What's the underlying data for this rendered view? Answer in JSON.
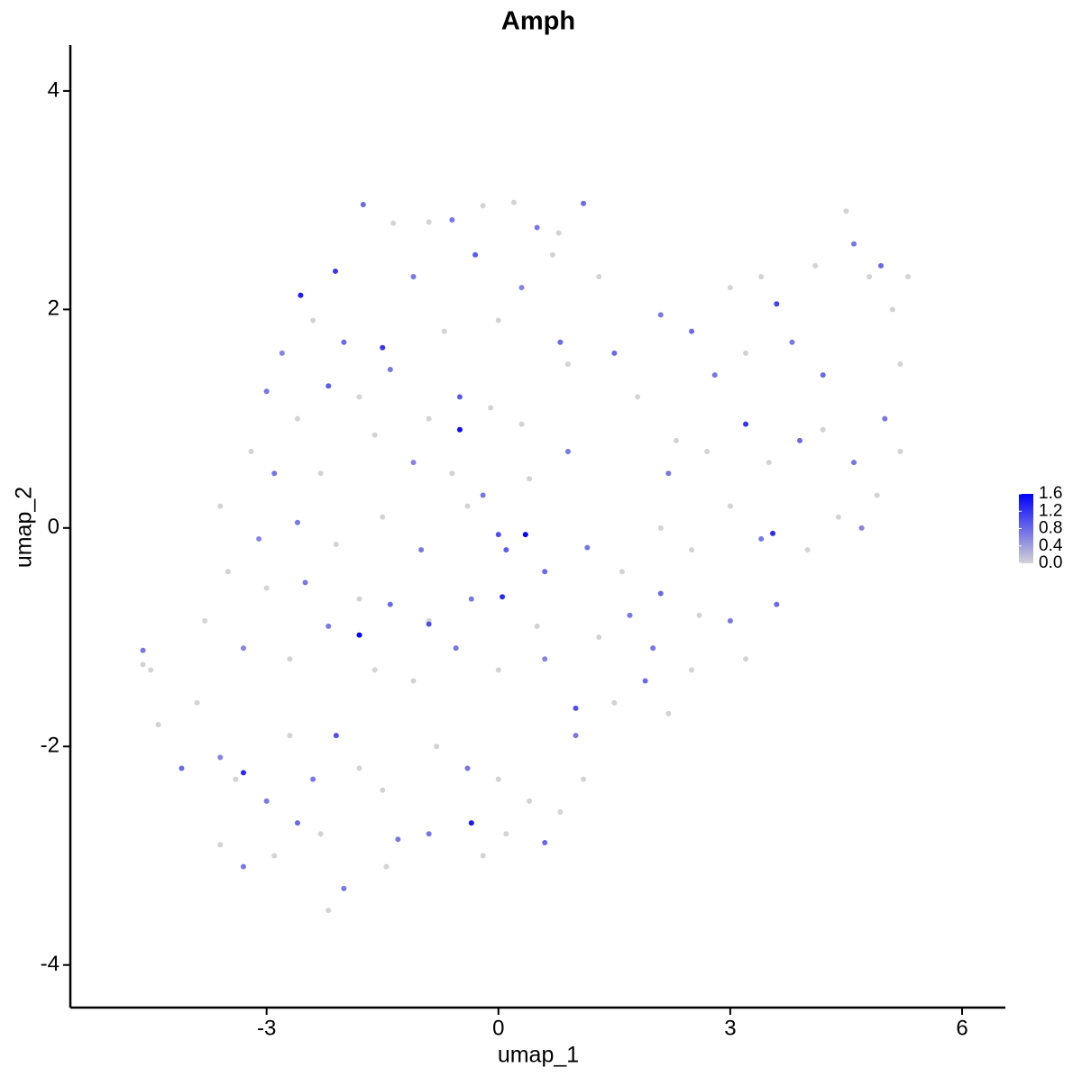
{
  "chart_data": {
    "type": "scatter",
    "title": "Amph",
    "x_label": "umap_1",
    "y_label": "umap_2",
    "xlim": [
      -5.54,
      6.56
    ],
    "ylim": [
      -4.39,
      4.42
    ],
    "xticks": [
      -3,
      0,
      3,
      6
    ],
    "yticks": [
      -4,
      -2,
      0,
      2,
      4
    ],
    "color_low": "#d3d3d3",
    "color_high": "#0000ff",
    "colorlim": [
      0,
      1.6
    ],
    "colorticks": [
      {
        "value": 0,
        "label": "0.0"
      },
      0.4,
      0.8,
      1.2,
      1.6
    ],
    "x": [
      -2.56,
      -2.11,
      -1.75,
      -1.36,
      -0.9,
      -0.6,
      -0.2,
      0.2,
      0.5,
      0.78,
      1.1,
      1.3,
      -2.8,
      -2.4,
      -2.0,
      -1.5,
      -1.1,
      -0.7,
      -0.3,
      0.0,
      0.3,
      0.7,
      -3.0,
      -2.6,
      -2.2,
      -1.8,
      -1.4,
      -0.9,
      -0.5,
      -0.5,
      -0.1,
      0.3,
      0.8,
      0.9,
      -3.2,
      -2.9,
      -2.3,
      -1.6,
      -1.1,
      -0.6,
      -0.2,
      0.4,
      0.9,
      -3.6,
      -3.1,
      -2.6,
      -2.1,
      -1.5,
      -1.0,
      -0.4,
      0.0,
      0.35,
      0.1,
      0.6,
      1.15,
      -3.5,
      -3.0,
      -2.5,
      -1.8,
      -1.4,
      -0.9,
      -0.35,
      0.05,
      0.5,
      -1.8,
      -0.9,
      -3.8,
      -3.3,
      -2.7,
      -2.2,
      -1.6,
      -1.1,
      -0.55,
      0.0,
      0.6,
      1.0,
      -4.6,
      -4.6,
      -4.5,
      -4.4,
      -4.1,
      -3.9,
      -3.6,
      -3.4,
      -3.3,
      -3.0,
      -2.7,
      -2.4,
      -2.1,
      -1.8,
      -3.6,
      -3.3,
      -2.9,
      -2.6,
      -2.3,
      -2.0,
      -2.2,
      -1.5,
      -1.3,
      -1.45,
      -0.8,
      -0.4,
      -0.35,
      0.0,
      0.1,
      0.4,
      0.6,
      0.8,
      1.0,
      1.1,
      -0.9,
      -0.2,
      1.5,
      1.8,
      2.1,
      2.5,
      2.3,
      2.8,
      3.0,
      3.2,
      3.4,
      3.6,
      3.8,
      4.1,
      4.2,
      4.5,
      4.6,
      4.8,
      4.95,
      5.1,
      5.3,
      5.2,
      5.0,
      5.2,
      4.9,
      4.6,
      4.2,
      3.9,
      3.5,
      3.2,
      2.7,
      2.2,
      2.1,
      2.5,
      3.0,
      3.55,
      3.4,
      4.0,
      4.4,
      4.7,
      1.6,
      2.1,
      2.6,
      3.0,
      3.6,
      3.2,
      2.5,
      2.0,
      1.5,
      1.9,
      2.2,
      1.7,
      1.3
    ],
    "y": [
      2.13,
      2.35,
      2.96,
      2.79,
      2.8,
      2.82,
      2.95,
      2.98,
      2.75,
      2.7,
      2.97,
      2.3,
      1.6,
      1.9,
      1.7,
      1.65,
      2.3,
      1.8,
      2.5,
      1.9,
      2.2,
      2.5,
      1.25,
      1.0,
      1.3,
      1.2,
      1.45,
      1.0,
      0.9,
      1.2,
      1.1,
      0.95,
      1.7,
      1.5,
      0.7,
      0.5,
      0.5,
      0.85,
      0.6,
      0.5,
      0.3,
      0.45,
      0.7,
      0.2,
      -0.1,
      0.05,
      -0.15,
      0.1,
      -0.2,
      0.2,
      -0.06,
      -0.06,
      -0.2,
      -0.4,
      -0.18,
      -0.4,
      -0.55,
      -0.5,
      -0.65,
      -0.7,
      -0.85,
      -0.65,
      -0.63,
      -0.9,
      -0.98,
      -0.88,
      -0.85,
      -1.1,
      -1.2,
      -0.9,
      -1.3,
      -1.4,
      -1.1,
      -1.3,
      -1.2,
      -1.65,
      -1.25,
      -1.12,
      -1.3,
      -1.8,
      -2.2,
      -1.6,
      -2.1,
      -2.3,
      -2.24,
      -2.5,
      -1.9,
      -2.3,
      -1.9,
      -2.2,
      -2.9,
      -3.1,
      -3.0,
      -2.7,
      -2.8,
      -3.3,
      -3.5,
      -2.4,
      -2.85,
      -3.1,
      -2.0,
      -2.2,
      -2.7,
      -2.3,
      -2.8,
      -2.5,
      -2.88,
      -2.6,
      -1.9,
      -2.3,
      -2.8,
      -3.0,
      1.6,
      1.2,
      1.95,
      1.8,
      0.8,
      1.4,
      2.2,
      1.6,
      2.3,
      2.05,
      1.7,
      2.4,
      1.4,
      2.9,
      2.6,
      2.3,
      2.4,
      2.0,
      2.3,
      1.5,
      1.0,
      0.7,
      0.3,
      0.6,
      0.9,
      0.8,
      0.6,
      0.95,
      0.7,
      0.5,
      0.0,
      -0.2,
      0.2,
      -0.05,
      -0.1,
      -0.2,
      0.1,
      0.0,
      -0.4,
      -0.6,
      -0.8,
      -0.85,
      -0.7,
      -1.2,
      -1.3,
      -1.1,
      -1.6,
      -1.4,
      -1.7,
      -0.8,
      -1.0
    ],
    "expression": [
      1.4,
      1.2,
      0.8,
      0.0,
      0.0,
      0.7,
      0.0,
      0.0,
      0.7,
      0.0,
      0.8,
      0.0,
      0.6,
      0.0,
      0.8,
      1.2,
      0.7,
      0.0,
      0.9,
      0.0,
      0.6,
      0.0,
      0.7,
      0.0,
      0.9,
      0.0,
      0.7,
      0.0,
      1.5,
      0.9,
      0.0,
      0.0,
      0.8,
      0.0,
      0.0,
      0.7,
      0.0,
      0.0,
      0.6,
      0.0,
      0.7,
      0.0,
      0.7,
      0.0,
      0.6,
      0.7,
      0.0,
      0.0,
      0.7,
      0.0,
      1.0,
      1.6,
      0.9,
      0.8,
      0.7,
      0.0,
      0.0,
      0.7,
      0.0,
      0.8,
      0.0,
      0.7,
      1.3,
      0.0,
      1.6,
      1.0,
      0.0,
      0.6,
      0.0,
      0.7,
      0.0,
      0.0,
      0.7,
      0.0,
      0.6,
      1.0,
      0.0,
      0.7,
      0.0,
      0.0,
      0.8,
      0.0,
      0.6,
      0.0,
      1.3,
      0.7,
      0.0,
      0.7,
      1.0,
      0.0,
      0.0,
      0.7,
      0.0,
      0.8,
      0.0,
      0.7,
      0.0,
      0.0,
      0.7,
      0.0,
      0.0,
      0.7,
      1.4,
      0.0,
      0.0,
      0.0,
      0.8,
      0.0,
      0.7,
      0.0,
      0.7,
      0.0,
      0.8,
      0.0,
      0.7,
      0.8,
      0.0,
      0.7,
      0.0,
      0.0,
      0.0,
      1.1,
      0.7,
      0.0,
      0.8,
      0.0,
      0.7,
      0.0,
      0.8,
      0.0,
      0.0,
      0.0,
      0.7,
      0.0,
      0.0,
      0.7,
      0.0,
      0.8,
      0.0,
      1.2,
      0.0,
      0.7,
      0.0,
      0.0,
      0.0,
      1.3,
      0.7,
      0.0,
      0.0,
      0.6,
      0.0,
      0.8,
      0.0,
      0.7,
      0.8,
      0.0,
      0.0,
      0.7,
      0.0,
      0.8,
      0.0,
      0.7,
      0.0
    ]
  }
}
